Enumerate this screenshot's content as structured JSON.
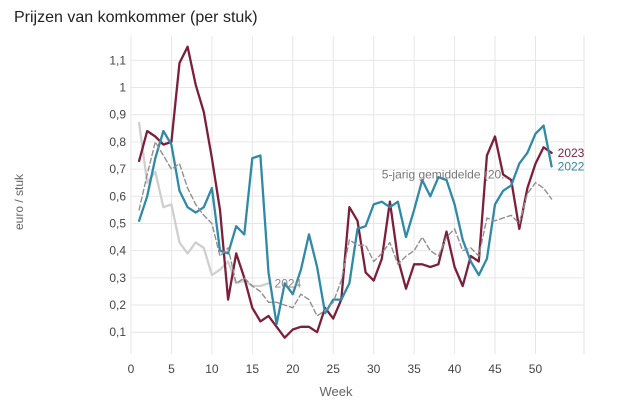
{
  "chart_data": {
    "type": "line",
    "title": "Prijzen van komkommer (per stuk)",
    "xlabel": "Week",
    "ylabel": "euro / stuk",
    "xlim": [
      0,
      56
    ],
    "ylim": [
      0.02,
      1.16
    ],
    "xticks": [
      0,
      5,
      10,
      15,
      20,
      25,
      30,
      35,
      40,
      45,
      50
    ],
    "yticks": [
      0.1,
      0.2,
      0.3,
      0.4,
      0.5,
      0.6,
      0.7,
      0.8,
      0.9,
      1.0,
      1.1
    ],
    "ytick_labels": [
      "0,1",
      "0,2",
      "0,3",
      "0,4",
      "0,5",
      "0,6",
      "0,7",
      "0,8",
      "0,9",
      "1",
      "1,1"
    ],
    "grid": true,
    "legend": "direct labels at line ends",
    "series": [
      {
        "name": "2024",
        "color": "#cfcfcf",
        "dashed": false,
        "label_pos": "end",
        "x": [
          1,
          2,
          3,
          4,
          5,
          6,
          7,
          8,
          9,
          10,
          11,
          12,
          13,
          14,
          15,
          16,
          17
        ],
        "y": [
          0.87,
          0.65,
          0.69,
          0.56,
          0.57,
          0.43,
          0.39,
          0.43,
          0.41,
          0.31,
          0.33,
          0.36,
          0.28,
          0.29,
          0.27,
          0.27,
          0.28
        ]
      },
      {
        "name": "2023",
        "color": "#7d1f3b",
        "dashed": false,
        "label_pos": "end",
        "x": [
          1,
          2,
          3,
          4,
          5,
          6,
          7,
          8,
          9,
          10,
          11,
          12,
          13,
          14,
          15,
          16,
          17,
          18,
          19,
          20,
          21,
          22,
          23,
          24,
          25,
          26,
          27,
          28,
          29,
          30,
          31,
          32,
          33,
          34,
          35,
          36,
          37,
          38,
          39,
          40,
          41,
          42,
          43,
          44,
          45,
          46,
          47,
          48,
          49,
          50,
          51,
          52
        ],
        "y": [
          0.73,
          0.84,
          0.82,
          0.79,
          0.8,
          1.09,
          1.15,
          1.01,
          0.91,
          0.74,
          0.55,
          0.22,
          0.39,
          0.3,
          0.19,
          0.14,
          0.16,
          0.12,
          0.08,
          0.11,
          0.12,
          0.12,
          0.1,
          0.19,
          0.15,
          0.22,
          0.56,
          0.51,
          0.32,
          0.29,
          0.37,
          0.58,
          0.37,
          0.26,
          0.35,
          0.35,
          0.34,
          0.35,
          0.47,
          0.34,
          0.27,
          0.38,
          0.36,
          0.75,
          0.82,
          0.68,
          0.66,
          0.48,
          0.63,
          0.72,
          0.78,
          0.76
        ]
      },
      {
        "name": "2022",
        "color": "#2f8aa8",
        "dashed": false,
        "label_pos": "end",
        "x": [
          1,
          2,
          3,
          4,
          5,
          6,
          7,
          8,
          9,
          10,
          11,
          12,
          13,
          14,
          15,
          16,
          17,
          18,
          19,
          20,
          21,
          22,
          23,
          24,
          25,
          26,
          27,
          28,
          29,
          30,
          31,
          32,
          33,
          34,
          35,
          36,
          37,
          38,
          39,
          40,
          41,
          42,
          43,
          44,
          45,
          46,
          47,
          48,
          49,
          50,
          51,
          52
        ],
        "y": [
          0.51,
          0.6,
          0.74,
          0.84,
          0.79,
          0.62,
          0.56,
          0.54,
          0.56,
          0.63,
          0.4,
          0.39,
          0.49,
          0.46,
          0.74,
          0.75,
          0.32,
          0.13,
          0.28,
          0.24,
          0.33,
          0.46,
          0.34,
          0.17,
          0.22,
          0.22,
          0.28,
          0.48,
          0.49,
          0.57,
          0.58,
          0.56,
          0.58,
          0.45,
          0.55,
          0.66,
          0.6,
          0.67,
          0.66,
          0.57,
          0.44,
          0.36,
          0.31,
          0.37,
          0.57,
          0.62,
          0.64,
          0.72,
          0.76,
          0.83,
          0.86,
          0.71
        ]
      },
      {
        "name": "5-jarig gemiddelde (20...",
        "color": "#909090",
        "dashed": true,
        "label_pos": "above",
        "x": [
          1,
          2,
          3,
          4,
          5,
          6,
          7,
          8,
          9,
          10,
          11,
          12,
          13,
          14,
          15,
          16,
          17,
          18,
          19,
          20,
          21,
          22,
          23,
          24,
          25,
          26,
          27,
          28,
          29,
          30,
          31,
          32,
          33,
          34,
          35,
          36,
          37,
          38,
          39,
          40,
          41,
          42,
          43,
          44,
          45,
          46,
          47,
          48,
          49,
          50,
          51,
          52
        ],
        "y": [
          0.55,
          0.68,
          0.8,
          0.75,
          0.7,
          0.72,
          0.63,
          0.57,
          0.53,
          0.5,
          0.38,
          0.41,
          0.28,
          0.3,
          0.27,
          0.25,
          0.21,
          0.21,
          0.2,
          0.19,
          0.24,
          0.22,
          0.16,
          0.18,
          0.21,
          0.29,
          0.44,
          0.42,
          0.42,
          0.36,
          0.39,
          0.43,
          0.35,
          0.38,
          0.4,
          0.45,
          0.4,
          0.38,
          0.45,
          0.48,
          0.4,
          0.41,
          0.38,
          0.52,
          0.51,
          0.52,
          0.53,
          0.5,
          0.61,
          0.65,
          0.63,
          0.59
        ]
      }
    ]
  }
}
